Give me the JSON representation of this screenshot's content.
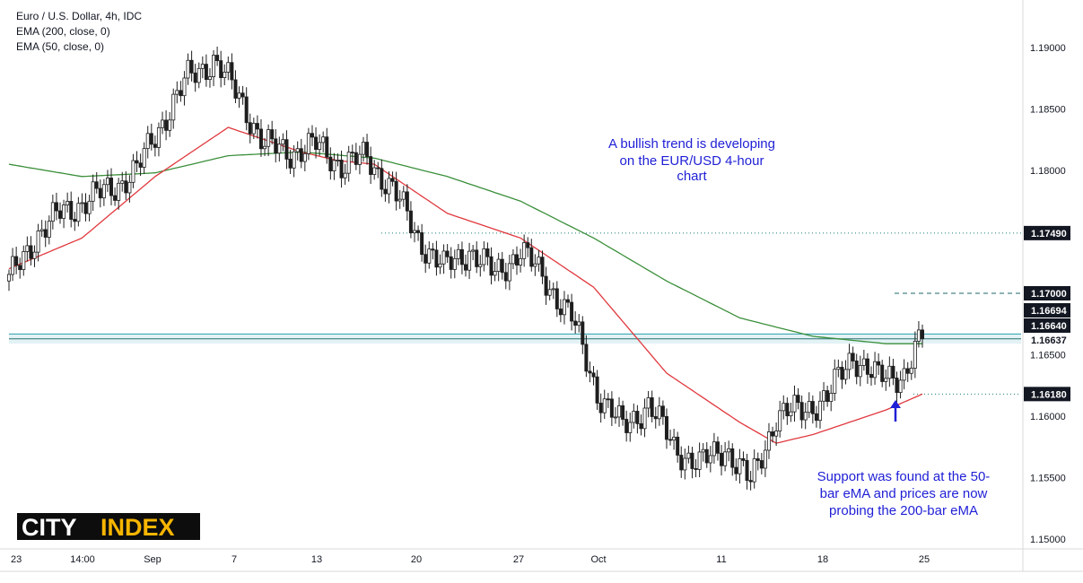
{
  "header": {
    "symbol_line": "Euro / U.S. Dollar, 4h, IDC",
    "indicator_1": "EMA (200, close, 0)",
    "indicator_2": "EMA (50, close, 0)"
  },
  "annotations": {
    "trend_note": [
      "A bullish trend is developing",
      "on the EUR/USD 4-hour",
      "chart"
    ],
    "support_note": [
      "Support was found at the 50-",
      "bar eMA and prices are now",
      "probing the 200-bar eMA"
    ]
  },
  "logo": {
    "text_a": "CITY",
    "text_b": "INDEX",
    "bg": "#0d0d0d",
    "fg": "#ffffff",
    "accent": "#f7b500"
  },
  "colors": {
    "up": "#26a69a",
    "down": "#ef5350",
    "candle": "#1e1e1e",
    "ema200": "#3a8f3a",
    "ema50": "#e0393e",
    "note": "#1f1fd6",
    "price_tag_bg": "#131722",
    "price_tag_fg": "#ffffff"
  },
  "chart_data": {
    "type": "line",
    "title": "Euro / U.S. Dollar, 4h, IDC",
    "timeframe": "4h",
    "x_ticks": [
      "23",
      "14:00",
      "Sep",
      "7",
      "13",
      "20",
      "27",
      "Oct",
      "11",
      "18",
      "25"
    ],
    "y_ticks": [
      "1.19000",
      "1.18500",
      "1.18000",
      "1.16500",
      "1.16000",
      "1.15500",
      "1.15000"
    ],
    "ylim": [
      1.1488,
      1.1938
    ],
    "price_levels": [
      {
        "label": "1.17490",
        "value": 1.1749,
        "style": "dotted"
      },
      {
        "label": "1.17000",
        "value": 1.17,
        "style": "dashed"
      },
      {
        "label": "1.16694",
        "value": 1.16694,
        "style": "tag"
      },
      {
        "label": "1.16640",
        "value": 1.1664,
        "style": "tag"
      },
      {
        "label": "1.16637",
        "value": 1.16637,
        "style": "current"
      },
      {
        "label": "1.16180",
        "value": 1.1618,
        "style": "dotted"
      }
    ],
    "support_zone": [
      1.1659,
      1.1664
    ],
    "series": [
      {
        "name": "EUR/USD close",
        "x": [
          0,
          7,
          14,
          21,
          28,
          35,
          42,
          49,
          56,
          63,
          70,
          77,
          84,
          91,
          98,
          105,
          112,
          119,
          126,
          133,
          140,
          147,
          154,
          161,
          168,
          175,
          182,
          189,
          196,
          203,
          210,
          217,
          224,
          231,
          238,
          245,
          250
        ],
        "values": [
          1.171,
          1.1745,
          1.1765,
          1.1775,
          1.1785,
          1.18,
          1.184,
          1.1875,
          1.189,
          1.186,
          1.182,
          1.1815,
          1.182,
          1.1805,
          1.181,
          1.1785,
          1.1745,
          1.172,
          1.1735,
          1.1715,
          1.1735,
          1.171,
          1.168,
          1.162,
          1.159,
          1.161,
          1.1575,
          1.156,
          1.1575,
          1.1545,
          1.16,
          1.1605,
          1.1615,
          1.165,
          1.163,
          1.1635,
          1.1664
        ]
      },
      {
        "name": "EMA 200",
        "x": [
          0,
          20,
          40,
          60,
          80,
          100,
          120,
          140,
          160,
          180,
          200,
          220,
          240,
          250
        ],
        "values": [
          1.1805,
          1.1795,
          1.1798,
          1.1812,
          1.1815,
          1.181,
          1.1795,
          1.1775,
          1.1745,
          1.171,
          1.168,
          1.1665,
          1.1659,
          1.1659
        ]
      },
      {
        "name": "EMA 50",
        "x": [
          0,
          20,
          40,
          60,
          80,
          90,
          100,
          120,
          140,
          160,
          180,
          200,
          210,
          220,
          240,
          250
        ],
        "values": [
          1.172,
          1.1745,
          1.1795,
          1.1835,
          1.1815,
          1.1808,
          1.1805,
          1.1765,
          1.1745,
          1.1705,
          1.1635,
          1.1595,
          1.1578,
          1.1585,
          1.1605,
          1.1618
        ]
      }
    ]
  }
}
